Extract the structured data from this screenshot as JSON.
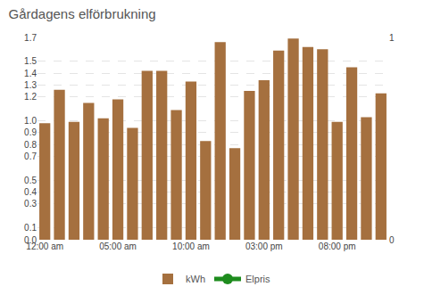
{
  "chart_data": {
    "type": "bar",
    "title": "Gårdagens elförbrukning",
    "categories": [
      "12:00 am",
      null,
      null,
      null,
      null,
      "05:00 am",
      null,
      null,
      null,
      null,
      "10:00 am",
      null,
      null,
      null,
      null,
      "03:00 pm",
      null,
      null,
      null,
      null,
      "08:00 pm",
      null,
      null,
      null
    ],
    "series": [
      {
        "name": "kWh",
        "type": "bar",
        "color": "#a5703f",
        "values": [
          0.98,
          1.26,
          0.99,
          1.15,
          1.02,
          1.18,
          0.94,
          1.42,
          1.42,
          1.09,
          1.33,
          0.83,
          1.66,
          0.77,
          1.25,
          1.34,
          1.59,
          1.69,
          1.62,
          1.6,
          0.99,
          1.45,
          1.03,
          1.23
        ]
      },
      {
        "name": "Elpris",
        "type": "line",
        "color": "#1e8c1e",
        "axis": "y2",
        "values": [
          null,
          null,
          null,
          null,
          null,
          null,
          null,
          null,
          null,
          null,
          null,
          null,
          null,
          null,
          null,
          null,
          null,
          null,
          null,
          null,
          null,
          null,
          null,
          null
        ]
      }
    ],
    "ylim": [
      0,
      1.7
    ],
    "yticks": [
      {
        "value": 0,
        "label": "0.0"
      },
      0.1,
      0.3,
      0.4,
      0.5,
      0.7,
      0.8,
      0.9,
      {
        "value": 1,
        "label": "1.0"
      },
      1.2,
      1.3,
      1.4,
      1.5,
      1.7
    ],
    "y2lim": [
      0,
      1
    ],
    "y2ticks": [
      0,
      1
    ],
    "grid": true,
    "legend": "bottom"
  }
}
